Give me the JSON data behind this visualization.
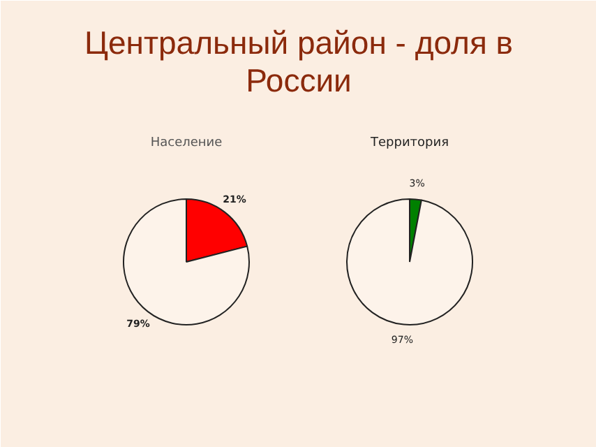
{
  "chart_data": [
    {
      "type": "pie",
      "title": "Население",
      "annotations": [
        "Центральный район - доля в России"
      ],
      "categories": [
        null,
        null
      ],
      "values": [
        21,
        79
      ],
      "colors": [
        "#ff0000",
        "#fdf3ea"
      ],
      "value_labels": [
        "21%",
        "79%"
      ]
    },
    {
      "type": "pie",
      "title": "Территория",
      "categories": [
        null,
        null
      ],
      "values": [
        3,
        97
      ],
      "colors": [
        "#008000",
        "#fdf3ea"
      ],
      "value_labels": [
        "3%",
        "97%"
      ]
    }
  ]
}
